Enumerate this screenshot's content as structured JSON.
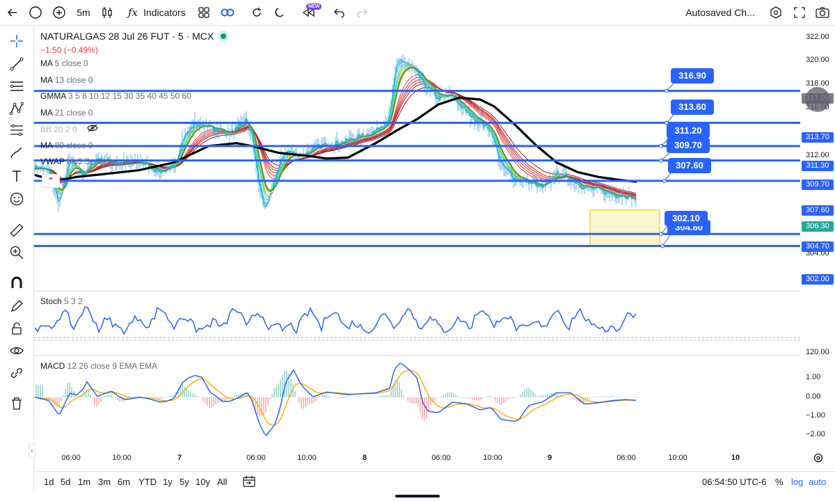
{
  "toolbar": {
    "interval": "5m",
    "indicators_label": "Indicators",
    "new_badge": "NEW",
    "autosave_label": "Autosaved Ch..."
  },
  "legend": {
    "symbol": "NATURALGAS 28 Jul 26 FUT · 5 · MCX",
    "change": "−1.50 (−0.49%)",
    "indicators": [
      {
        "name": "MA",
        "params": "5 close 0"
      },
      {
        "name": "MA",
        "params": "13 close 0"
      },
      {
        "name": "GMMA",
        "params": "3 5 8 10 12 15 30 35 40 45 50 60"
      },
      {
        "name": "MA",
        "params": "21 close 0"
      },
      {
        "name": "BB",
        "params": "20 2 0"
      },
      {
        "name": "MA",
        "params": "89 close 0"
      },
      {
        "name": "VWAP",
        "params": "hlc3 Session"
      }
    ],
    "stoch": {
      "name": "Stoch",
      "params": "5 3 2"
    },
    "macd": {
      "name": "MACD",
      "params": "12 26 close 9 EMA EMA"
    }
  },
  "horizontal_lines": [
    "316.90",
    "313.60",
    "311.20",
    "309.70",
    "307.60",
    "304.80",
    "302.10"
  ],
  "price_axis": {
    "ticks": [
      "322.00",
      "320.00",
      "318.00",
      "316.00",
      "312.00",
      "304.00"
    ],
    "tags": [
      {
        "text": "317.00",
        "color": "#7c7f8a"
      },
      {
        "text": "313.70",
        "color": "#2962ff"
      },
      {
        "text": "311.30",
        "color": "#2962ff"
      },
      {
        "text": "309.70",
        "color": "#2962ff"
      },
      {
        "text": "307.60",
        "color": "#2962ff"
      },
      {
        "text": "306.30",
        "color": "#26a69a"
      },
      {
        "text": "304.70",
        "color": "#2962ff"
      },
      {
        "text": "302.00",
        "color": "#2962ff"
      }
    ],
    "stoch_tick": "120.00",
    "macd_ticks": [
      "1.00",
      "0.00",
      "−1.00",
      "−2.00"
    ]
  },
  "time_axis": [
    "06:00",
    "10:00",
    "7",
    "06:00",
    "10:00",
    "8",
    "06:00",
    "10:00",
    "9",
    "06:00",
    "10:00",
    "10"
  ],
  "bottom_bar": {
    "ranges": [
      "1d",
      "5d",
      "1m",
      "3m",
      "6m",
      "YTD",
      "1y",
      "5y",
      "10y",
      "All"
    ],
    "clock": "06:54:50 UTC-6",
    "percent": "%",
    "log": "log",
    "auto": "auto"
  },
  "colors": {
    "accent": "#2962ff",
    "vwap": "#000000",
    "stoch": "#2962ff",
    "macd_line": "#2962ff",
    "signal_line": "#f7b500",
    "live_dot": "#089981"
  }
}
